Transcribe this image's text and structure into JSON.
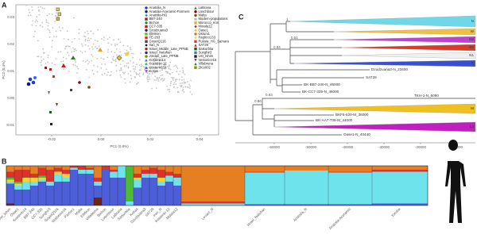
{
  "panels": {
    "a": {
      "letter": "A",
      "x_label": "PC1 (0.8%)",
      "y_label": "PC2 (0.4%)",
      "x_ticks": [
        "-0.02",
        "0.00",
        "0.02",
        "0.04"
      ],
      "y_ticks": [
        "0.03",
        "0.02",
        "0.01",
        "0.00",
        "-0.01"
      ],
      "legend": [
        {
          "label": "Anatolia_N",
          "color": "#1f3fbf",
          "marker": "circle"
        },
        {
          "label": "Anatolia-Aceramic-Farmers",
          "color": "#0a1f6e",
          "marker": "circle"
        },
        {
          "label": "Anatolia-HG",
          "color": "#2f6fff",
          "marker": "diamond"
        },
        {
          "label": "BB7-240",
          "color": "#7a2a10",
          "marker": "square"
        },
        {
          "label": "Bichon",
          "color": "#2c8a2c",
          "marker": "circle"
        },
        {
          "label": "CC7-335",
          "color": "#b22222",
          "marker": "square"
        },
        {
          "label": "Dzudzuana3",
          "color": "#1a1a8a",
          "marker": "circle"
        },
        {
          "label": "ElMiron",
          "color": "#5bbf2a",
          "marker": "square"
        },
        {
          "label": "FE-263",
          "color": "#c0392b",
          "marker": "square"
        },
        {
          "label": "GoyetQ116",
          "color": "#444444",
          "marker": "square"
        },
        {
          "label": "Iran_N",
          "color": "#111111",
          "marker": "diamond"
        },
        {
          "label": "Israel_Middle_Late_PPNB",
          "color": "#a02020",
          "marker": "circle"
        },
        {
          "label": "Israel_Natufian",
          "color": "#1b2a9a",
          "marker": "circle"
        },
        {
          "label": "Jordan_Late_PPNB",
          "color": "#6b8e23",
          "marker": "circle"
        },
        {
          "label": "Kostenki14",
          "color": "#2e8b57",
          "marker": "triangle"
        },
        {
          "label": "Kostenki-12",
          "color": "#3cb371",
          "marker": "triangle"
        },
        {
          "label": "Kostenki-14",
          "color": "#1e5aa8",
          "marker": "triangle"
        },
        {
          "label": "Kotias",
          "color": "#9b30c0",
          "marker": "tri-down"
        },
        {
          "label": "LaBrana",
          "color": "#2f7f2f",
          "marker": "triangle"
        },
        {
          "label": "Loschbour",
          "color": "#8b0000",
          "marker": "circle"
        },
        {
          "label": "Malta",
          "color": "#7a4a10",
          "marker": "circle"
        },
        {
          "label": "Modern-populations",
          "color": "#bbbbbb",
          "marker": "circle"
        },
        {
          "label": "Morocco_Iron",
          "color": "#e0b020",
          "marker": "square"
        },
        {
          "label": "Motala12",
          "color": "#c02020",
          "marker": "diamond"
        },
        {
          "label": "Oase1",
          "color": "#f0c020",
          "marker": "diamond"
        },
        {
          "label": "Ostuni1",
          "color": "#e07020",
          "marker": "circle"
        },
        {
          "label": "Paglicci133",
          "color": "#f0d040",
          "marker": "diamond"
        },
        {
          "label": "Russia_HG_Samara",
          "color": "#d04040",
          "marker": "square"
        },
        {
          "label": "SAT29",
          "color": "#c02020",
          "marker": "triangle"
        },
        {
          "label": "Satsurblia",
          "color": "#1a5a1a",
          "marker": "square"
        },
        {
          "label": "Sunghir3",
          "color": "#3a7ad0",
          "marker": "square"
        },
        {
          "label": "Ust_Ishim",
          "color": "#222222",
          "marker": "square"
        },
        {
          "label": "Vestonice16",
          "color": "#6a3a10",
          "marker": "tri-down"
        },
        {
          "label": "Villabruna",
          "color": "#208a20",
          "marker": "triangle"
        },
        {
          "label": "ZKU002",
          "color": "#8a8a20",
          "marker": "square"
        }
      ]
    },
    "b": {
      "letter": "B",
      "component_colors": [
        "#e67e22",
        "#d9342b",
        "#4cbb3a",
        "#f2d43a",
        "#6fe3ec",
        "#4c5ed8",
        "#6e2410"
      ],
      "groups": [
        {
          "label": "Ust_Ishim",
          "proportions": [
            0.15,
            0.15,
            0.05,
            0.05,
            0.05,
            0.5,
            0.05
          ]
        },
        {
          "label": "Oase1",
          "proportions": [
            0.1,
            0.3,
            0.05,
            0.05,
            0.1,
            0.4,
            0
          ]
        },
        {
          "label": "Kostenki14",
          "proportions": [
            0.1,
            0.2,
            0,
            0.1,
            0.2,
            0.4,
            0
          ]
        },
        {
          "label": "BB7-240",
          "proportions": [
            0.2,
            0.1,
            0,
            0.1,
            0.1,
            0.5,
            0
          ]
        },
        {
          "label": "CC7-335",
          "proportions": [
            0.05,
            0.2,
            0.05,
            0.05,
            0.05,
            0.6,
            0
          ]
        },
        {
          "label": "Sunghir3",
          "proportions": [
            0.1,
            0.3,
            0,
            0,
            0.1,
            0.5,
            0
          ]
        },
        {
          "label": "GoyetQ116",
          "proportions": [
            0.05,
            0.1,
            0,
            0.05,
            0.2,
            0.6,
            0
          ]
        },
        {
          "label": "Vestonice16",
          "proportions": [
            0.1,
            0.1,
            0,
            0.1,
            0.1,
            0.6,
            0
          ]
        },
        {
          "label": "Pavlov1",
          "proportions": [
            0,
            0.05,
            0,
            0,
            0.05,
            0.9,
            0
          ]
        },
        {
          "label": "Malta",
          "proportions": [
            0,
            0.1,
            0,
            0,
            0.1,
            0.8,
            0
          ]
        },
        {
          "label": "ElMiron",
          "proportions": [
            0.05,
            0.05,
            0,
            0,
            0.1,
            0.8,
            0
          ]
        },
        {
          "label": "Villabruna",
          "proportions": [
            0.3,
            0.1,
            0,
            0,
            0.1,
            0.3,
            0.2
          ]
        },
        {
          "label": "Bichon",
          "proportions": [
            0,
            0.1,
            0,
            0,
            0,
            0.9,
            0
          ]
        },
        {
          "label": "Loschbour",
          "proportions": [
            0.1,
            0.05,
            0,
            0,
            0.15,
            0.7,
            0
          ]
        },
        {
          "label": "LaBrana",
          "proportions": [
            0,
            0,
            0,
            0,
            0.3,
            0.7,
            0
          ]
        },
        {
          "label": "Satsurblia",
          "proportions": [
            0,
            0,
            0.9,
            0,
            0.1,
            0,
            0
          ]
        },
        {
          "label": "Kotias",
          "proportions": [
            0.2,
            0.1,
            0,
            0.05,
            0.2,
            0.45,
            0
          ]
        },
        {
          "label": "Dzudzuana3",
          "proportions": [
            0.1,
            0.1,
            0,
            0,
            0.1,
            0.7,
            0
          ]
        },
        {
          "label": "SAT29",
          "proportions": [
            0.05,
            0.15,
            0,
            0,
            0.1,
            0.7,
            0
          ]
        },
        {
          "label": "Iran_N",
          "proportions": [
            0.1,
            0.2,
            0,
            0.1,
            0.1,
            0.5,
            0
          ]
        },
        {
          "label": "Kostenki-12",
          "proportions": [
            0.15,
            0.1,
            0,
            0,
            0.15,
            0.6,
            0
          ]
        },
        {
          "label": "Motala12",
          "proportions": [
            0.2,
            0.1,
            0,
            0,
            0.2,
            0.5,
            0
          ]
        },
        {
          "label": "Levant_N",
          "proportions": [
            0.9,
            0.05,
            0,
            0,
            0.05,
            0,
            0
          ]
        },
        {
          "label": "Israel_Natufian",
          "proportions": [
            0.15,
            0.02,
            0,
            0,
            0.8,
            0.03,
            0
          ]
        },
        {
          "label": "Anatolia_N",
          "proportions": [
            0.12,
            0,
            0,
            0,
            0.85,
            0.03,
            0
          ]
        },
        {
          "label": "Anatolia-Aceramic",
          "proportions": [
            0.15,
            0.02,
            0,
            0,
            0.8,
            0.03,
            0
          ]
        },
        {
          "label": "Yoruba",
          "proportions": [
            0.1,
            0.05,
            0,
            0,
            0.8,
            0.05,
            0
          ]
        }
      ]
    },
    "c": {
      "letter": "C",
      "x_ticks": [
        "-60000",
        "-50000",
        "-40000",
        "-30000",
        "-20000",
        "-10000"
      ],
      "clades": [
        {
          "label": "N",
          "color": "#6fd8e8"
        },
        {
          "label": "W",
          "color": "#f0c040"
        },
        {
          "label": "N3",
          "color": "#c040d0"
        },
        {
          "label": "N2",
          "color": "#d93a2a"
        },
        {
          "label": "N1",
          "color": "#f0f0f0"
        },
        {
          "label": "X",
          "color": "#3a4fd0"
        },
        {
          "label": "M",
          "color": "#f0c020"
        },
        {
          "label": "L3",
          "color": "#c020c0"
        }
      ],
      "tips": [
        "Dzudzuana3-N_23400",
        "SAT29",
        "BK-BB7-240-N_46000",
        "BK-CC7-335-N_46000",
        "TKH-1-N_6090",
        "BKF6-620-M_36000",
        "BK-AA7-738-M_44000",
        "Oase1-N_40440"
      ],
      "supports": [
        "0.63",
        "0.51",
        "0.94",
        "1",
        "0.86"
      ]
    }
  }
}
